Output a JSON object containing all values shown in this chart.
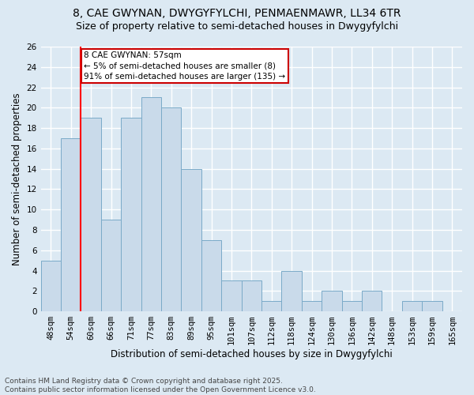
{
  "title1": "8, CAE GWYNAN, DWYGYFYLCHI, PENMAENMAWR, LL34 6TR",
  "title2": "Size of property relative to semi-detached houses in Dwygyfylchi",
  "xlabel": "Distribution of semi-detached houses by size in Dwygyfylchi",
  "ylabel": "Number of semi-detached properties",
  "categories": [
    "48sqm",
    "54sqm",
    "60sqm",
    "66sqm",
    "71sqm",
    "77sqm",
    "83sqm",
    "89sqm",
    "95sqm",
    "101sqm",
    "107sqm",
    "112sqm",
    "118sqm",
    "124sqm",
    "130sqm",
    "136sqm",
    "142sqm",
    "148sqm",
    "153sqm",
    "159sqm",
    "165sqm"
  ],
  "values": [
    5,
    17,
    19,
    9,
    19,
    21,
    20,
    14,
    7,
    3,
    3,
    1,
    4,
    1,
    2,
    1,
    2,
    0,
    1,
    1,
    0
  ],
  "bar_color": "#c9daea",
  "bar_edge_color": "#7aaac8",
  "background_color": "#dce9f3",
  "red_line_x": 1.5,
  "annotation_text": "8 CAE GWYNAN: 57sqm\n← 5% of semi-detached houses are smaller (8)\n91% of semi-detached houses are larger (135) →",
  "annotation_box_facecolor": "#ffffff",
  "annotation_box_edgecolor": "#cc0000",
  "footnote": "Contains HM Land Registry data © Crown copyright and database right 2025.\nContains public sector information licensed under the Open Government Licence v3.0.",
  "ylim": [
    0,
    26
  ],
  "yticks": [
    0,
    2,
    4,
    6,
    8,
    10,
    12,
    14,
    16,
    18,
    20,
    22,
    24,
    26
  ],
  "title1_fontsize": 10,
  "title2_fontsize": 9,
  "axis_label_fontsize": 8.5,
  "tick_fontsize": 7.5,
  "footnote_fontsize": 6.5,
  "annotation_fontsize": 7.5,
  "grid_color": "#ffffff",
  "grid_linewidth": 1.0
}
